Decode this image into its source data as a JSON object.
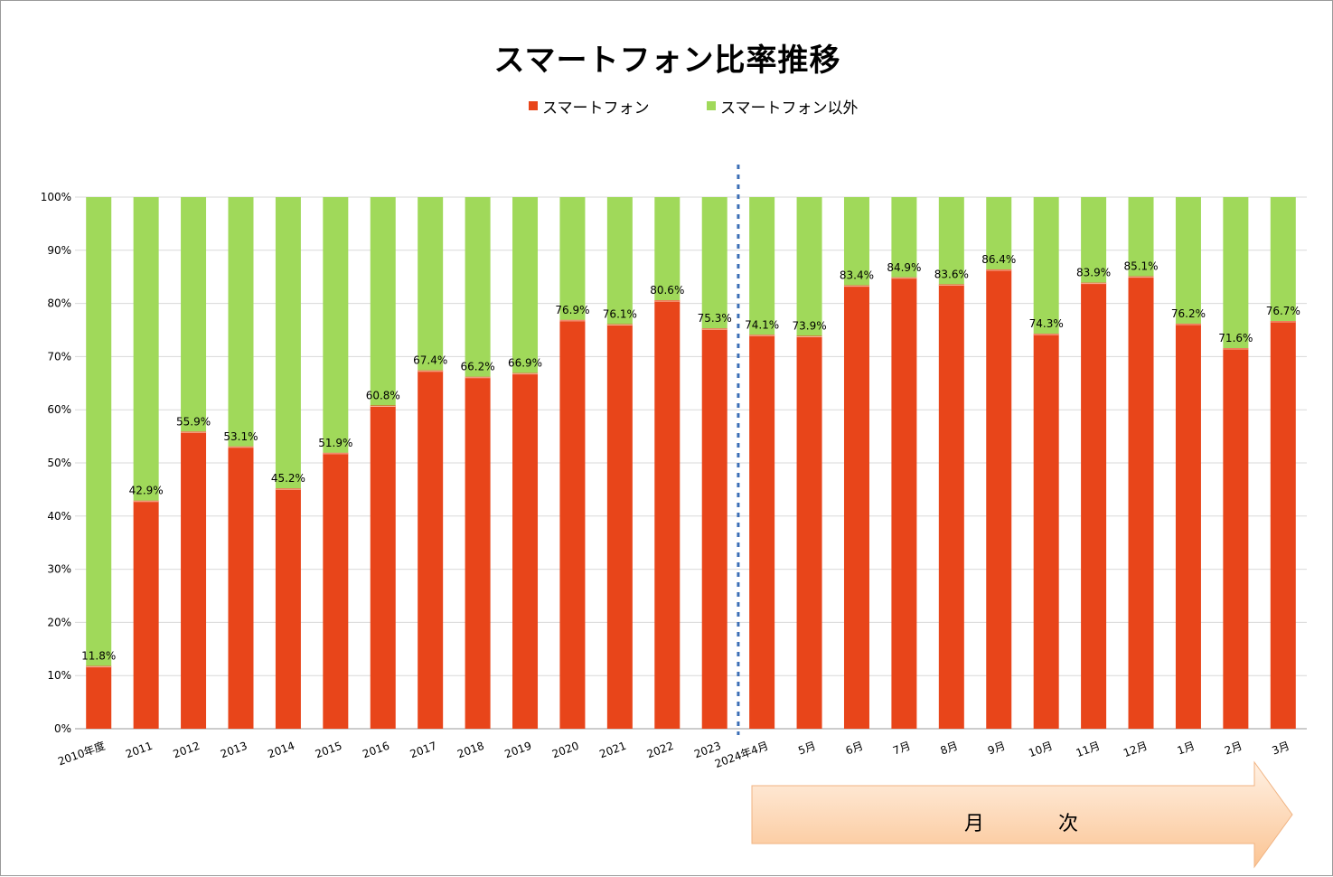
{
  "chart_data": {
    "type": "bar",
    "stacked": true,
    "title": "スマートフォン比率推移",
    "xlabel": "",
    "ylabel": "",
    "ylim": [
      0,
      100
    ],
    "y_ticks": [
      "0%",
      "10%",
      "20%",
      "30%",
      "40%",
      "50%",
      "60%",
      "70%",
      "80%",
      "90%",
      "100%"
    ],
    "grid": true,
    "legend_position": "top",
    "categories": [
      "2010年度",
      "2011",
      "2012",
      "2013",
      "2014",
      "2015",
      "2016",
      "2017",
      "2018",
      "2019",
      "2020",
      "2021",
      "2022",
      "2023",
      "2024年4月",
      "5月",
      "6月",
      "7月",
      "8月",
      "9月",
      "10月",
      "11月",
      "12月",
      "1月",
      "2月",
      "3月"
    ],
    "series": [
      {
        "name": "スマートフォン",
        "color": "#E8451A",
        "values": [
          11.8,
          42.9,
          55.9,
          53.1,
          45.2,
          51.9,
          60.8,
          67.4,
          66.2,
          66.9,
          76.9,
          76.1,
          80.6,
          75.3,
          74.1,
          73.9,
          83.4,
          84.9,
          83.6,
          86.4,
          74.3,
          83.9,
          85.1,
          76.2,
          71.6,
          76.7
        ]
      },
      {
        "name": "スマートフォン以外",
        "color": "#A0D95A",
        "values": [
          88.2,
          57.1,
          44.1,
          46.9,
          54.8,
          48.1,
          39.2,
          32.6,
          33.8,
          33.1,
          23.1,
          23.9,
          19.4,
          24.7,
          25.9,
          26.1,
          16.6,
          15.1,
          16.4,
          13.6,
          25.7,
          16.1,
          14.9,
          23.8,
          28.4,
          23.3
        ]
      }
    ],
    "data_labels": [
      "11.8%",
      "42.9%",
      "55.9%",
      "53.1%",
      "45.2%",
      "51.9%",
      "60.8%",
      "67.4%",
      "66.2%",
      "66.9%",
      "76.9%",
      "76.1%",
      "80.6%",
      "75.3%",
      "74.1%",
      "73.9%",
      "83.4%",
      "84.9%",
      "83.6%",
      "86.4%",
      "74.3%",
      "83.9%",
      "85.1%",
      "76.2%",
      "71.6%",
      "76.7%"
    ],
    "divider_after_category": "2023",
    "annotation": {
      "text": "月　次",
      "color": "#FBC493"
    }
  }
}
